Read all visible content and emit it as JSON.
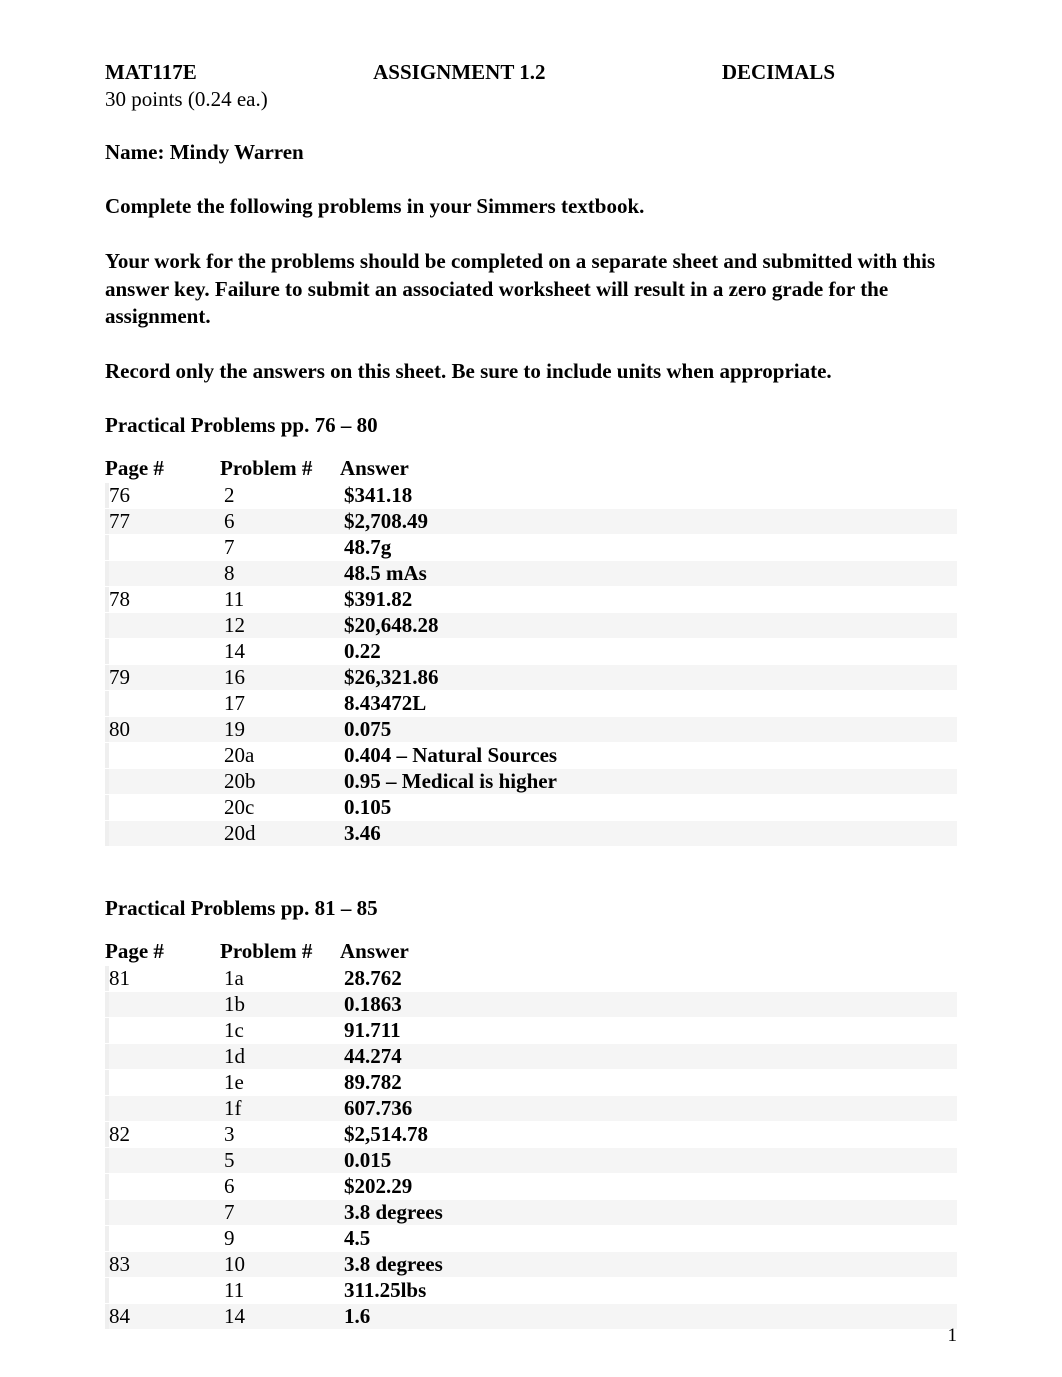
{
  "header": {
    "course": "MAT117E",
    "assignment": "ASSIGNMENT 1.2",
    "topic": "DECIMALS",
    "points": "30 points (0.24 ea.)"
  },
  "name": "Name: Mindy Warren",
  "instructions": {
    "p1": "Complete the following problems in your Simmers textbook.",
    "p2": "Your work for the problems should be completed on a separate sheet and submitted with this answer key.  Failure to submit an associated worksheet will result in a zero grade for the assignment.",
    "p3": "Record only the answers on this sheet.  Be sure to include units when appropriate."
  },
  "section1": {
    "title": "Practical Problems pp. 76 – 80",
    "columns": {
      "page": "Page #",
      "problem": "Problem #",
      "answer": "Answer"
    },
    "rows": [
      {
        "page": "76",
        "problem": "2",
        "answer": "$341.18"
      },
      {
        "page": "77",
        "problem": "6",
        "answer": "$2,708.49"
      },
      {
        "page": "",
        "problem": "7",
        "answer": "48.7g"
      },
      {
        "page": "",
        "problem": "8",
        "answer": "48.5 mAs"
      },
      {
        "page": "78",
        "problem": "11",
        "answer": "$391.82"
      },
      {
        "page": "",
        "problem": "12",
        "answer": "$20,648.28"
      },
      {
        "page": "",
        "problem": "14",
        "answer": "0.22"
      },
      {
        "page": "79",
        "problem": "16",
        "answer": "$26,321.86"
      },
      {
        "page": "",
        "problem": "17",
        "answer": "8.43472L"
      },
      {
        "page": "80",
        "problem": "19",
        "answer": "0.075"
      },
      {
        "page": "",
        "problem": "20a",
        "answer": "0.404 – Natural Sources"
      },
      {
        "page": "",
        "problem": "20b",
        "answer": "0.95 – Medical is higher"
      },
      {
        "page": "",
        "problem": "20c",
        "answer": "0.105"
      },
      {
        "page": "",
        "problem": "20d",
        "answer": "3.46"
      }
    ]
  },
  "section2": {
    "title": "Practical Problems pp. 81 – 85",
    "columns": {
      "page": "Page #",
      "problem": "Problem #",
      "answer": "Answer"
    },
    "rows": [
      {
        "page": "81",
        "problem": "1a",
        "answer": "28.762"
      },
      {
        "page": "",
        "problem": "1b",
        "answer": "0.1863"
      },
      {
        "page": "",
        "problem": "1c",
        "answer": "91.711"
      },
      {
        "page": "",
        "problem": "1d",
        "answer": "44.274"
      },
      {
        "page": "",
        "problem": "1e",
        "answer": "89.782"
      },
      {
        "page": "",
        "problem": "1f",
        "answer": "607.736"
      },
      {
        "page": "82",
        "problem": "3",
        "answer": "$2,514.78"
      },
      {
        "page": "",
        "problem": "5",
        "answer": "0.015"
      },
      {
        "page": "",
        "problem": "6",
        "answer": "$202.29"
      },
      {
        "page": "",
        "problem": "7",
        "answer": "3.8 degrees"
      },
      {
        "page": "",
        "problem": "9",
        "answer": "4.5"
      },
      {
        "page": "83",
        "problem": "10",
        "answer": "3.8 degrees"
      },
      {
        "page": "",
        "problem": "11",
        "answer": "311.25lbs"
      },
      {
        "page": "84",
        "problem": "14",
        "answer": "1.6"
      }
    ]
  },
  "pageNumber": "1"
}
